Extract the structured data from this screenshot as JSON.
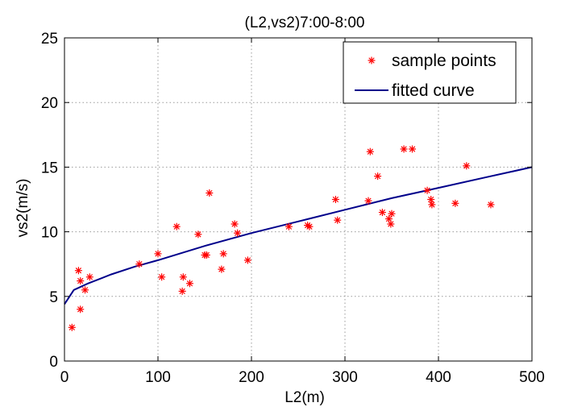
{
  "chart_data": {
    "type": "scatter",
    "title": "(L2,vs2)7:00-8:00",
    "xlabel": "L2(m)",
    "ylabel": "vs2(m/s)",
    "xlim": [
      0,
      500
    ],
    "ylim": [
      0,
      25
    ],
    "xticks": [
      "0",
      "100",
      "200",
      "300",
      "400",
      "500"
    ],
    "yticks": [
      "0",
      "5",
      "10",
      "15",
      "20",
      "25"
    ],
    "grid": true,
    "legend": {
      "placement": "top-right",
      "entries": [
        "sample points",
        "fitted curve"
      ]
    },
    "series": [
      {
        "name": "sample points",
        "kind": "scatter",
        "color": "#ff0000",
        "marker": "asterisk",
        "x": [
          8,
          15,
          17,
          17,
          22,
          27,
          80,
          100,
          104,
          120,
          126,
          127,
          134,
          143,
          150,
          152,
          155,
          168,
          170,
          182,
          185,
          196,
          240,
          260,
          262,
          290,
          292,
          325,
          327,
          335,
          340,
          347,
          349,
          350,
          363,
          372,
          388,
          392,
          393,
          418,
          430,
          456
        ],
        "y": [
          2.6,
          7.0,
          4.0,
          6.2,
          5.5,
          6.5,
          7.5,
          8.3,
          6.5,
          10.4,
          5.4,
          6.5,
          6.0,
          9.8,
          8.2,
          8.2,
          13.0,
          7.1,
          8.3,
          10.6,
          9.9,
          7.8,
          10.4,
          10.5,
          10.4,
          12.5,
          10.9,
          12.4,
          16.2,
          14.3,
          11.5,
          11.0,
          10.6,
          11.4,
          16.4,
          16.4,
          13.2,
          12.5,
          12.1,
          12.2,
          15.1,
          12.1
        ]
      },
      {
        "name": "fitted curve",
        "kind": "line",
        "color": "#00008b",
        "x": [
          0,
          10,
          25,
          50,
          75,
          100,
          150,
          200,
          250,
          300,
          350,
          400,
          450,
          500
        ],
        "y": [
          4.4,
          5.5,
          6.0,
          6.7,
          7.3,
          7.8,
          8.9,
          9.9,
          10.8,
          11.7,
          12.6,
          13.4,
          14.2,
          15.0
        ]
      }
    ]
  }
}
